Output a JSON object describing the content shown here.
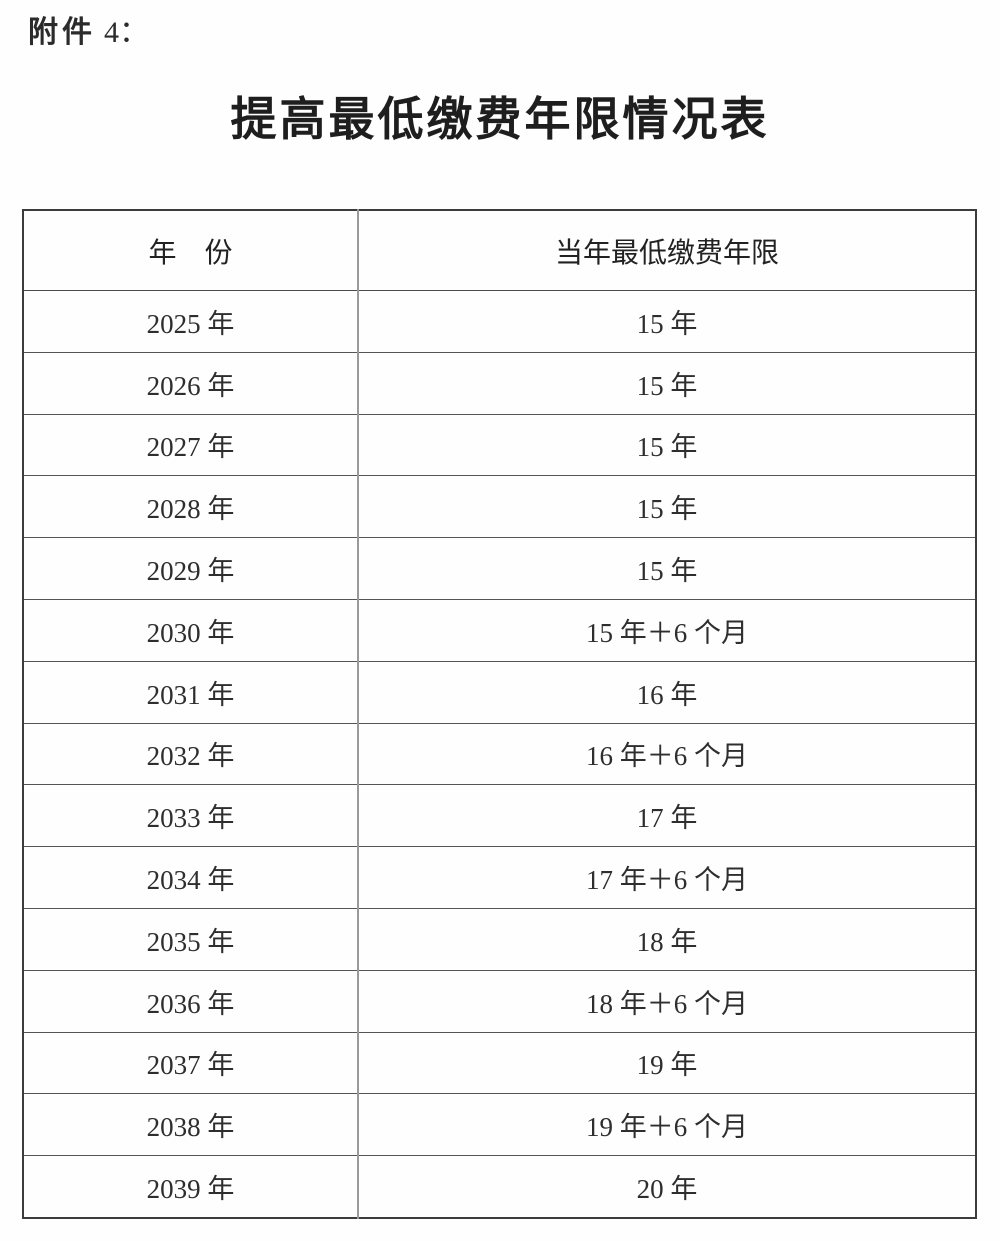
{
  "page": {
    "attachment_prefix": "附件",
    "attachment_number": "4：",
    "title": "提高最低缴费年限情况表"
  },
  "colors": {
    "text": "#2b2b2b",
    "outer_border": "#3c3c3c",
    "row_line": "#555555",
    "column_divider": "#9a9a9a",
    "background": "#fefefe"
  },
  "table": {
    "col_headers": {
      "year": "年　份",
      "min_years": "当年最低缴费年限"
    },
    "rows": [
      {
        "year": "2025 年",
        "min_years": "15 年"
      },
      {
        "year": "2026 年",
        "min_years": "15 年"
      },
      {
        "year": "2027 年",
        "min_years": "15 年"
      },
      {
        "year": "2028 年",
        "min_years": "15 年"
      },
      {
        "year": "2029 年",
        "min_years": "15 年"
      },
      {
        "year": "2030 年",
        "min_years": "15 年＋6 个月"
      },
      {
        "year": "2031 年",
        "min_years": "16 年"
      },
      {
        "year": "2032 年",
        "min_years": "16 年＋6 个月"
      },
      {
        "year": "2033 年",
        "min_years": "17 年"
      },
      {
        "year": "2034 年",
        "min_years": "17 年＋6 个月"
      },
      {
        "year": "2035 年",
        "min_years": "18 年"
      },
      {
        "year": "2036 年",
        "min_years": "18 年＋6 个月"
      },
      {
        "year": "2037 年",
        "min_years": "19 年"
      },
      {
        "year": "2038 年",
        "min_years": "19 年＋6 个月"
      },
      {
        "year": "2039 年",
        "min_years": "20 年"
      }
    ]
  }
}
